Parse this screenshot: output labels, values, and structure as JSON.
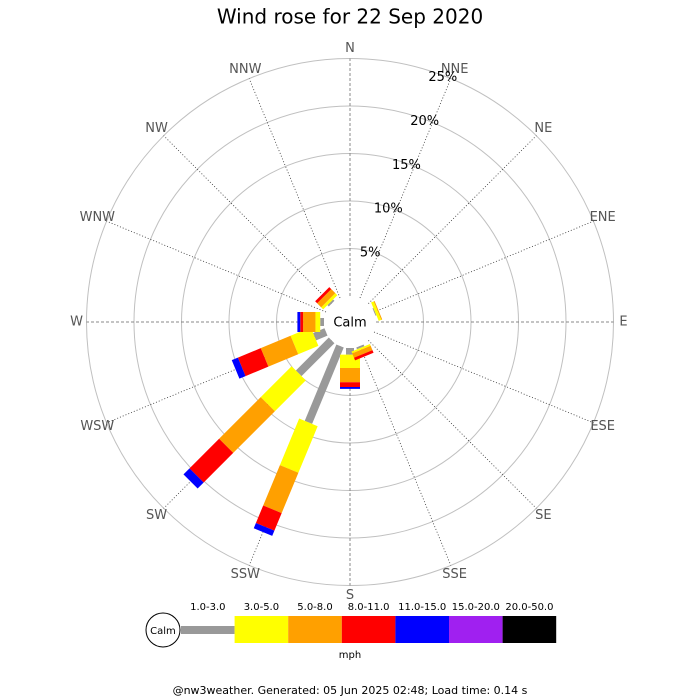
{
  "chart_data": {
    "type": "windrose",
    "title": "Wind rose for 22 Sep 2020",
    "directions": [
      "N",
      "NNE",
      "NE",
      "ENE",
      "E",
      "ESE",
      "SE",
      "SSE",
      "S",
      "SSW",
      "SW",
      "WSW",
      "W",
      "WNW",
      "NW",
      "NNW"
    ],
    "center_label": "Calm",
    "rlim": [
      0,
      25
    ],
    "rticks": [
      {
        "value": 5,
        "label": "5%"
      },
      {
        "value": 10,
        "label": "10%"
      },
      {
        "value": 15,
        "label": "15%"
      },
      {
        "value": 20,
        "label": "20%"
      },
      {
        "value": 25,
        "label": "25%"
      }
    ],
    "series": [
      {
        "name": "1.0-3.0",
        "color": "#999999",
        "values": [
          0,
          0,
          0,
          0.1,
          0,
          0,
          0,
          0.2,
          0.7,
          8.7,
          4.9,
          1.3,
          0.4,
          0,
          0.2,
          0
        ]
      },
      {
        "name": "3.0-5.0",
        "color": "#ffff00",
        "values": [
          0,
          0,
          0,
          0.3,
          0,
          0,
          0,
          0.2,
          1.4,
          5.3,
          4.6,
          2.3,
          0.5,
          0,
          0.3,
          0
        ]
      },
      {
        "name": "5.0-8.0",
        "color": "#ffa000",
        "values": [
          0,
          0,
          0,
          0.1,
          0,
          0,
          0,
          0.5,
          1.5,
          4.6,
          6.2,
          3.4,
          1.3,
          0,
          0.6,
          0
        ]
      },
      {
        "name": "8.0-11.0",
        "color": "#ff0000",
        "values": [
          0,
          0,
          0,
          0,
          0,
          0,
          0,
          0.3,
          0.5,
          2.0,
          4.4,
          2.6,
          0.3,
          0,
          0.3,
          0
        ]
      },
      {
        "name": "11.0-15.0",
        "color": "#0000ff",
        "values": [
          0,
          0,
          0,
          0,
          0,
          0,
          0,
          0,
          0.2,
          0.6,
          0.9,
          0.7,
          0.3,
          0,
          0,
          0
        ]
      },
      {
        "name": "15.0-20.0",
        "color": "#a020f0",
        "values": [
          0,
          0,
          0,
          0,
          0,
          0,
          0,
          0,
          0,
          0,
          0,
          0,
          0,
          0,
          0,
          0
        ]
      },
      {
        "name": "20.0-50.0",
        "color": "#000000",
        "values": [
          0,
          0,
          0,
          0,
          0,
          0,
          0,
          0,
          0,
          0,
          0,
          0,
          0,
          0,
          0,
          0
        ]
      }
    ],
    "legend_unit": "mph"
  },
  "footer": "@nw3weather. Generated: 05 Jun 2025 02:48; Load time: 0.14 s"
}
